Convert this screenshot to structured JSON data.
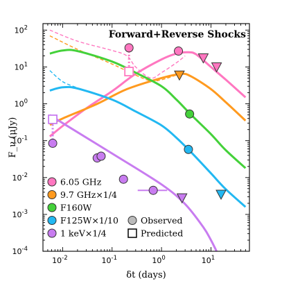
{
  "chart_data": {
    "type": "line",
    "title": "Forward+Reverse Shocks",
    "xlabel": "δt (days)",
    "ylabel": "F_ν (μJy)",
    "xscale": "log",
    "yscale": "log",
    "xlim": [
      0.004,
      60
    ],
    "ylim": [
      0.0001,
      150
    ],
    "x_ticks": [
      {
        "v": 0.01,
        "label": "10",
        "exp": "-2"
      },
      {
        "v": 0.1,
        "label": "10",
        "exp": "-1"
      },
      {
        "v": 1,
        "label": "10",
        "exp": "0"
      },
      {
        "v": 10,
        "label": "10",
        "exp": "1"
      }
    ],
    "y_ticks": [
      {
        "v": 0.0001,
        "label": "10",
        "exp": "-4"
      },
      {
        "v": 0.001,
        "label": "10",
        "exp": "-3"
      },
      {
        "v": 0.01,
        "label": "10",
        "exp": "-2"
      },
      {
        "v": 0.1,
        "label": "10",
        "exp": "-1"
      },
      {
        "v": 1,
        "label": "10",
        "exp": "0"
      },
      {
        "v": 10,
        "label": "10",
        "exp": "1"
      },
      {
        "v": 100,
        "label": "10",
        "exp": "2"
      }
    ],
    "legend_placement": "lower-left",
    "series": [
      {
        "name": "6.05 GHz",
        "color": "#ff77c0",
        "model": [
          [
            0.0055,
            0.13
          ],
          [
            0.01,
            0.25
          ],
          [
            0.03,
            0.75
          ],
          [
            0.1,
            2.2
          ],
          [
            0.3,
            6.5
          ],
          [
            1,
            16
          ],
          [
            2,
            23
          ],
          [
            3.5,
            25
          ],
          [
            5,
            22
          ],
          [
            10,
            10
          ],
          [
            20,
            4.5
          ],
          [
            50,
            1.5
          ]
        ],
        "reverse_shock": [
          [
            0.0055,
            100
          ],
          [
            0.02,
            50
          ],
          [
            0.1,
            28
          ],
          [
            0.2,
            20
          ],
          [
            0.3,
            10
          ],
          [
            0.6,
            5
          ],
          [
            1,
            7
          ],
          [
            2,
            13
          ],
          [
            3,
            20
          ]
        ],
        "observed": [
          [
            0.22,
            33
          ],
          [
            2.2,
            27
          ]
        ],
        "upper_limits": [
          [
            7.0,
            17.5
          ],
          [
            13.0,
            10
          ]
        ],
        "predicted": [
          [
            0.22,
            7.5
          ]
        ]
      },
      {
        "name": "9.7 GHz×1/4",
        "color": "#ff9a1f",
        "model": [
          [
            0.0055,
            0.27
          ],
          [
            0.01,
            0.4
          ],
          [
            0.05,
            1.0
          ],
          [
            0.2,
            2.5
          ],
          [
            1,
            5
          ],
          [
            2.5,
            6.5
          ],
          [
            4,
            5.5
          ],
          [
            10,
            2.5
          ],
          [
            20,
            1.1
          ],
          [
            50,
            0.35
          ]
        ],
        "reverse_shock": [
          [
            0.0055,
            70
          ],
          [
            0.02,
            30
          ],
          [
            0.1,
            12
          ],
          [
            0.3,
            6
          ],
          [
            0.6,
            4.2
          ],
          [
            1,
            4.5
          ],
          [
            2,
            6
          ]
        ],
        "observed": [],
        "upper_limits": [
          [
            2.3,
            6
          ]
        ],
        "predicted": []
      },
      {
        "name": "F160W",
        "color": "#44d13a",
        "model": [
          [
            0.0055,
            23
          ],
          [
            0.01,
            28
          ],
          [
            0.02,
            27
          ],
          [
            0.1,
            14
          ],
          [
            0.3,
            7
          ],
          [
            1,
            3
          ],
          [
            2,
            1.3
          ],
          [
            4,
            0.5
          ],
          [
            10,
            0.15
          ],
          [
            20,
            0.055
          ],
          [
            50,
            0.018
          ]
        ],
        "observed": [
          [
            3.7,
            0.53
          ]
        ],
        "upper_limits": [],
        "predicted": []
      },
      {
        "name": "F125W×1/10",
        "color": "#22b8f2",
        "model": [
          [
            0.0055,
            2.3
          ],
          [
            0.01,
            2.8
          ],
          [
            0.02,
            2.6
          ],
          [
            0.1,
            1.3
          ],
          [
            0.3,
            0.62
          ],
          [
            1,
            0.26
          ],
          [
            2,
            0.12
          ],
          [
            4,
            0.048
          ],
          [
            10,
            0.013
          ],
          [
            20,
            0.0048
          ],
          [
            50,
            0.0016
          ]
        ],
        "reverse_shock": [
          [
            0.0055,
            8
          ],
          [
            0.01,
            4
          ],
          [
            0.02,
            2.7
          ]
        ],
        "observed": [
          [
            3.5,
            0.058
          ]
        ],
        "upper_limits": [
          [
            16,
            0.0035
          ]
        ],
        "predicted": []
      },
      {
        "name": "1 keV×1/4",
        "color": "#c87cf0",
        "model": [
          [
            0.0055,
            0.5
          ],
          [
            0.01,
            0.3
          ],
          [
            0.1,
            0.045
          ],
          [
            1,
            0.0065
          ],
          [
            3,
            0.0019
          ],
          [
            7,
            0.00045
          ],
          [
            10,
            0.0002
          ],
          [
            13,
            0.0001
          ]
        ],
        "observed": [
          [
            0.0063,
            0.085
          ],
          [
            0.05,
            0.034
          ],
          [
            0.06,
            0.038
          ],
          [
            0.17,
            0.009
          ],
          [
            0.68,
            0.0045
          ]
        ],
        "upper_limits": [
          [
            2.6,
            0.0028
          ]
        ],
        "predicted": [
          [
            0.0063,
            0.38
          ]
        ]
      }
    ],
    "marker_legend": [
      "Observed",
      "Predicted"
    ]
  }
}
